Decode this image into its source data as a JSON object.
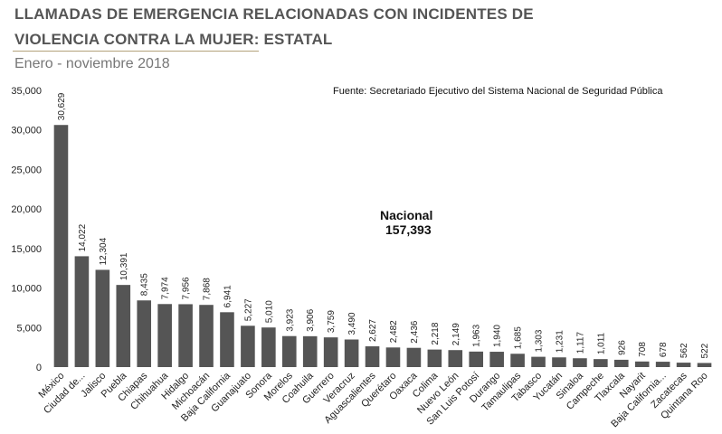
{
  "header": {
    "title_line1": "LLAMADAS DE EMERGENCIA RELACIONADAS CON INCIDENTES DE",
    "title_line2": "VIOLENCIA CONTRA LA MUJER: ESTATAL",
    "subtitle": "Enero - noviembre 2018",
    "source": "Fuente: Secretariado Ejecutivo del Sistema Nacional de Seguridad Pública"
  },
  "annotation": {
    "label": "Nacional",
    "value": "157,393"
  },
  "colors": {
    "bar": "#555555",
    "title": "#555555",
    "rule": "#b3a27a"
  },
  "chart_data": {
    "type": "bar",
    "title": "LLAMADAS DE EMERGENCIA RELACIONADAS CON INCIDENTES DE VIOLENCIA CONTRA LA MUJER: ESTATAL",
    "subtitle": "Enero - noviembre 2018",
    "xlabel": "",
    "ylabel": "",
    "ylim": [
      0,
      35000
    ],
    "yticks": [
      0,
      5000,
      10000,
      15000,
      20000,
      25000,
      30000,
      35000
    ],
    "ytick_labels": [
      "0",
      "5,000",
      "10,000",
      "15,000",
      "20,000",
      "25,000",
      "30,000",
      "35,000"
    ],
    "grid": false,
    "categories": [
      "México",
      "Ciudad de...",
      "Jalisco",
      "Puebla",
      "Chiapas",
      "Chihuahua",
      "Hidalgo",
      "Michoacán",
      "Baja California",
      "Guanajuato",
      "Sonora",
      "Morelos",
      "Coahuila",
      "Guerrero",
      "Veracruz",
      "Aguascalientes",
      "Querétaro",
      "Oaxaca",
      "Colima",
      "Nuevo León",
      "San Luis Potosí",
      "Durango",
      "Tamaulipas",
      "Tabasco",
      "Yucatán",
      "Sinaloa",
      "Campeche",
      "Tlaxcala",
      "Nayarit",
      "Baja California...",
      "Zacatecas",
      "Quintana Roo"
    ],
    "values": [
      30629,
      14022,
      12304,
      10391,
      8435,
      7974,
      7956,
      7868,
      6941,
      5227,
      5010,
      3923,
      3906,
      3759,
      3490,
      2627,
      2482,
      2436,
      2218,
      2149,
      1963,
      1940,
      1685,
      1303,
      1231,
      1117,
      1011,
      926,
      708,
      678,
      562,
      522
    ],
    "value_labels": [
      "30,629",
      "14,022",
      "12,304",
      "10,391",
      "8,435",
      "7,974",
      "7,956",
      "7,868",
      "6,941",
      "5,227",
      "5,010",
      "3,923",
      "3,906",
      "3,759",
      "3,490",
      "2,627",
      "2,482",
      "2,436",
      "2,218",
      "2,149",
      "1,963",
      "1,940",
      "1,685",
      "1,303",
      "1,231",
      "1,117",
      "1,011",
      "926",
      "708",
      "678",
      "562",
      "522"
    ]
  }
}
